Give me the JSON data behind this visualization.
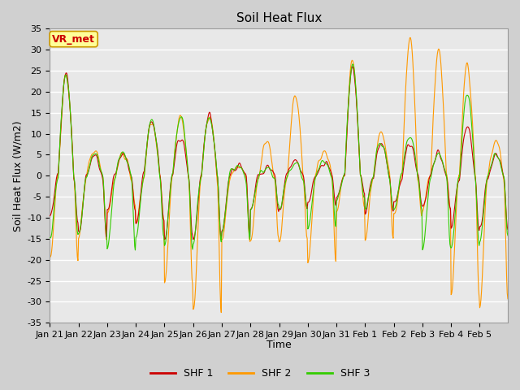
{
  "title": "Soil Heat Flux",
  "ylabel": "Soil Heat Flux (W/m2)",
  "xlabel": "Time",
  "ylim": [
    -35,
    35
  ],
  "yticks": [
    -35,
    -30,
    -25,
    -20,
    -15,
    -10,
    -5,
    0,
    5,
    10,
    15,
    20,
    25,
    30,
    35
  ],
  "xtick_labels": [
    "Jan 21",
    "Jan 22",
    "Jan 23",
    "Jan 24",
    "Jan 25",
    "Jan 26",
    "Jan 27",
    "Jan 28",
    "Jan 29",
    "Jan 30",
    "Jan 31",
    "Feb 1",
    "Feb 2",
    "Feb 3",
    "Feb 4",
    "Feb 5"
  ],
  "legend_labels": [
    "SHF 1",
    "SHF 2",
    "SHF 3"
  ],
  "colors": [
    "#cc0000",
    "#ff9900",
    "#33cc00"
  ],
  "annotation_text": "VR_met",
  "annotation_bg": "#ffff99",
  "annotation_border": "#cc9900",
  "fig_facecolor": "#d0d0d0",
  "ax_facecolor": "#e8e8e8",
  "grid_color": "white",
  "title_fontsize": 11,
  "axis_label_fontsize": 9,
  "tick_fontsize": 8,
  "n_days": 16,
  "pts_per_day": 48
}
